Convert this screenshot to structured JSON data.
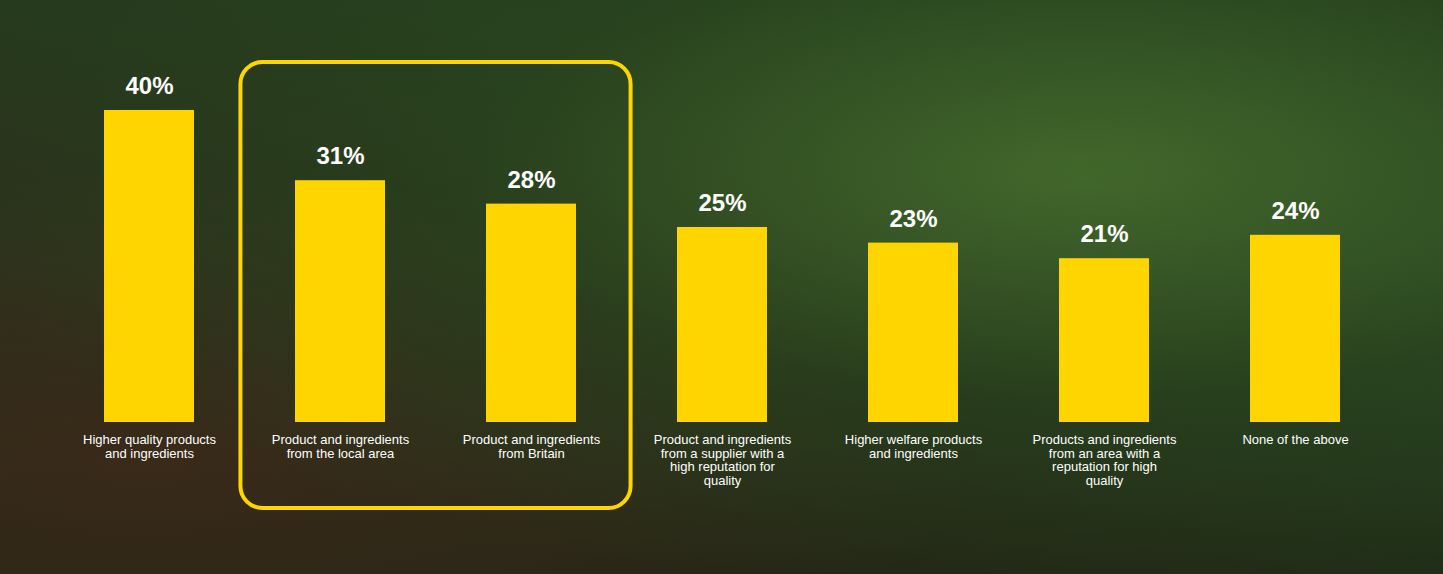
{
  "chart_data": {
    "type": "bar",
    "categories": [
      "Higher quality products and ingredients",
      "Product and ingredients from the local area",
      "Product and ingredients from Britain",
      "Product and ingredients from a supplier with a high reputation for quality",
      "Higher welfare products and ingredients",
      "Products and ingredients from an area with a reputation for high quality",
      "None of the above"
    ],
    "values": [
      40,
      31,
      28,
      25,
      23,
      21,
      24
    ],
    "value_labels": [
      "40%",
      "31%",
      "28%",
      "25%",
      "23%",
      "21%",
      "24%"
    ],
    "color": "#FFD500",
    "ylim": [
      0,
      40
    ],
    "data_labels": true,
    "tick_labels": "x",
    "grid": false
  }
}
